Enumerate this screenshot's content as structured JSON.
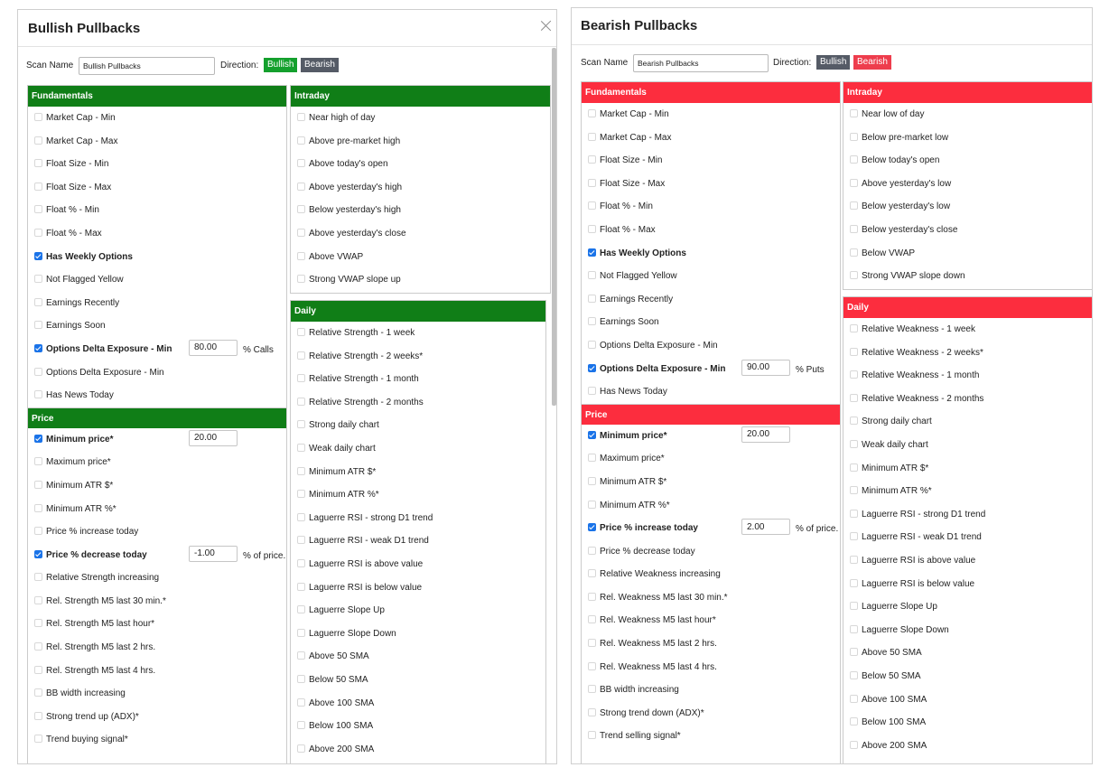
{
  "bullish": {
    "title": "Bullish Pullbacks",
    "scan_name_label": "Scan Name",
    "scan_name_value": "Bullish Pullbacks",
    "direction_label": "Direction:",
    "bullish_btn": "Bullish",
    "bearish_btn": "Bearish",
    "fundamentals": {
      "title": "Fundamentals",
      "items": [
        {
          "label": "Market Cap - Min",
          "checked": false
        },
        {
          "label": "Market Cap - Max",
          "checked": false
        },
        {
          "label": "Float Size - Min",
          "checked": false
        },
        {
          "label": "Float Size - Max",
          "checked": false
        },
        {
          "label": "Float % - Min",
          "checked": false
        },
        {
          "label": "Float % - Max",
          "checked": false
        },
        {
          "label": "Has Weekly Options",
          "checked": true
        },
        {
          "label": "Not Flagged Yellow",
          "checked": false
        },
        {
          "label": "Earnings Recently",
          "checked": false
        },
        {
          "label": "Earnings Soon",
          "checked": false
        },
        {
          "label": "Options Delta Exposure - Min",
          "checked": true,
          "value": "80.00",
          "unit": "% Calls"
        },
        {
          "label": "Options Delta Exposure - Min",
          "checked": false
        },
        {
          "label": "Has News Today",
          "checked": false
        }
      ]
    },
    "price": {
      "title": "Price",
      "items": [
        {
          "label": "Minimum price*",
          "checked": true,
          "value": "20.00"
        },
        {
          "label": "Maximum price*",
          "checked": false
        },
        {
          "label": "Minimum ATR $*",
          "checked": false
        },
        {
          "label": "Minimum ATR %*",
          "checked": false
        },
        {
          "label": "Price % increase today",
          "checked": false
        },
        {
          "label": "Price % decrease today",
          "checked": true,
          "value": "-1.00",
          "unit": "% of price."
        },
        {
          "label": "Relative Strength increasing",
          "checked": false
        },
        {
          "label": "Rel. Strength M5 last 30 min.*",
          "checked": false
        },
        {
          "label": "Rel. Strength M5 last hour*",
          "checked": false
        },
        {
          "label": "Rel. Strength M5 last 2 hrs.",
          "checked": false
        },
        {
          "label": "Rel. Strength M5 last 4 hrs.",
          "checked": false
        },
        {
          "label": "BB width increasing",
          "checked": false
        },
        {
          "label": "Strong trend up (ADX)*",
          "checked": false
        },
        {
          "label": "Trend buying signal*",
          "checked": false
        }
      ]
    },
    "intraday": {
      "title": "Intraday",
      "items": [
        {
          "label": "Near high of day",
          "checked": false
        },
        {
          "label": "Above pre-market high",
          "checked": false
        },
        {
          "label": "Above today's open",
          "checked": false
        },
        {
          "label": "Above yesterday's high",
          "checked": false
        },
        {
          "label": "Below yesterday's high",
          "checked": false
        },
        {
          "label": "Above yesterday's close",
          "checked": false
        },
        {
          "label": "Above VWAP",
          "checked": false
        },
        {
          "label": "Strong VWAP slope up",
          "checked": false
        }
      ]
    },
    "daily": {
      "title": "Daily",
      "items": [
        {
          "label": "Relative Strength - 1 week",
          "checked": false
        },
        {
          "label": "Relative Strength - 2 weeks*",
          "checked": false
        },
        {
          "label": "Relative Strength - 1 month",
          "checked": false
        },
        {
          "label": "Relative Strength - 2 months",
          "checked": false
        },
        {
          "label": "Strong daily chart",
          "checked": false
        },
        {
          "label": "Weak daily chart",
          "checked": false
        },
        {
          "label": "Minimum ATR $*",
          "checked": false
        },
        {
          "label": "Minimum ATR %*",
          "checked": false
        },
        {
          "label": "Laguerre RSI - strong D1 trend",
          "checked": false
        },
        {
          "label": "Laguerre RSI - weak D1 trend",
          "checked": false
        },
        {
          "label": "Laguerre RSI is above value",
          "checked": false
        },
        {
          "label": "Laguerre RSI is below value",
          "checked": false
        },
        {
          "label": "Laguerre Slope Up",
          "checked": false
        },
        {
          "label": "Laguerre Slope Down",
          "checked": false
        },
        {
          "label": "Above 50 SMA",
          "checked": false
        },
        {
          "label": "Below 50 SMA",
          "checked": false
        },
        {
          "label": "Above 100 SMA",
          "checked": false
        },
        {
          "label": "Below 100 SMA",
          "checked": false
        },
        {
          "label": "Above 200 SMA",
          "checked": false
        }
      ]
    }
  },
  "bearish": {
    "title": "Bearish Pullbacks",
    "scan_name_label": "Scan Name",
    "scan_name_value": "Bearish Pullbacks",
    "direction_label": "Direction:",
    "bullish_btn": "Bullish",
    "bearish_btn": "Bearish",
    "fundamentals": {
      "title": "Fundamentals",
      "items": [
        {
          "label": "Market Cap - Min",
          "checked": false
        },
        {
          "label": "Market Cap - Max",
          "checked": false
        },
        {
          "label": "Float Size - Min",
          "checked": false
        },
        {
          "label": "Float Size - Max",
          "checked": false
        },
        {
          "label": "Float % - Min",
          "checked": false
        },
        {
          "label": "Float % - Max",
          "checked": false
        },
        {
          "label": "Has Weekly Options",
          "checked": true
        },
        {
          "label": "Not Flagged Yellow",
          "checked": false
        },
        {
          "label": "Earnings Recently",
          "checked": false
        },
        {
          "label": "Earnings Soon",
          "checked": false
        },
        {
          "label": "Options Delta Exposure - Min",
          "checked": false
        },
        {
          "label": "Options Delta Exposure - Min",
          "checked": true,
          "value": "90.00",
          "unit": "% Puts"
        },
        {
          "label": "Has News Today",
          "checked": false
        }
      ]
    },
    "price": {
      "title": "Price",
      "items": [
        {
          "label": "Minimum price*",
          "checked": true,
          "value": "20.00"
        },
        {
          "label": "Maximum price*",
          "checked": false
        },
        {
          "label": "Minimum ATR $*",
          "checked": false
        },
        {
          "label": "Minimum ATR %*",
          "checked": false
        },
        {
          "label": "Price % increase today",
          "checked": true,
          "value": "2.00",
          "unit": "% of price."
        },
        {
          "label": "Price % decrease today",
          "checked": false
        },
        {
          "label": "Relative Weakness increasing",
          "checked": false
        },
        {
          "label": "Rel. Weakness M5 last 30 min.*",
          "checked": false
        },
        {
          "label": "Rel. Weakness M5 last hour*",
          "checked": false
        },
        {
          "label": "Rel. Weakness M5 last 2 hrs.",
          "checked": false
        },
        {
          "label": "Rel. Weakness M5 last 4 hrs.",
          "checked": false
        },
        {
          "label": "BB width increasing",
          "checked": false
        },
        {
          "label": "Strong trend down (ADX)*",
          "checked": false
        },
        {
          "label": "Trend selling signal*",
          "checked": false
        }
      ]
    },
    "intraday": {
      "title": "Intraday",
      "items": [
        {
          "label": "Near low of day",
          "checked": false
        },
        {
          "label": "Below pre-market low",
          "checked": false
        },
        {
          "label": "Below today's open",
          "checked": false
        },
        {
          "label": "Above yesterday's low",
          "checked": false
        },
        {
          "label": "Below yesterday's low",
          "checked": false
        },
        {
          "label": "Below yesterday's close",
          "checked": false
        },
        {
          "label": "Below VWAP",
          "checked": false
        },
        {
          "label": "Strong VWAP slope down",
          "checked": false
        }
      ]
    },
    "daily": {
      "title": "Daily",
      "items": [
        {
          "label": "Relative Weakness - 1 week",
          "checked": false
        },
        {
          "label": "Relative Weakness - 2 weeks*",
          "checked": false
        },
        {
          "label": "Relative Weakness - 1 month",
          "checked": false
        },
        {
          "label": "Relative Weakness - 2 months",
          "checked": false
        },
        {
          "label": "Strong daily chart",
          "checked": false
        },
        {
          "label": "Weak daily chart",
          "checked": false
        },
        {
          "label": "Minimum ATR $*",
          "checked": false
        },
        {
          "label": "Minimum ATR %*",
          "checked": false
        },
        {
          "label": "Laguerre RSI - strong D1 trend",
          "checked": false
        },
        {
          "label": "Laguerre RSI - weak D1 trend",
          "checked": false
        },
        {
          "label": "Laguerre RSI is above value",
          "checked": false
        },
        {
          "label": "Laguerre RSI is below value",
          "checked": false
        },
        {
          "label": "Laguerre Slope Up",
          "checked": false
        },
        {
          "label": "Laguerre Slope Down",
          "checked": false
        },
        {
          "label": "Above 50 SMA",
          "checked": false
        },
        {
          "label": "Below 50 SMA",
          "checked": false
        },
        {
          "label": "Above 100 SMA",
          "checked": false
        },
        {
          "label": "Below 100 SMA",
          "checked": false
        },
        {
          "label": "Above 200 SMA",
          "checked": false
        }
      ]
    }
  }
}
